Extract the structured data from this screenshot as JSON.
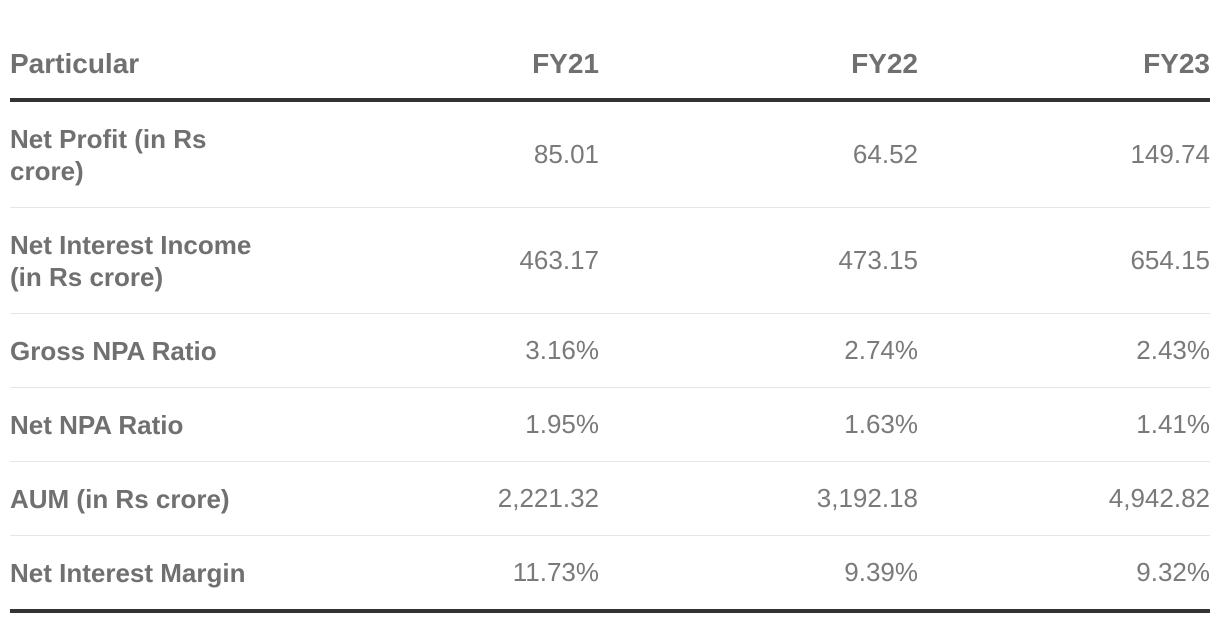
{
  "chart_data": {
    "type": "table",
    "columns": [
      "Particular",
      "FY21",
      "FY22",
      "FY23"
    ],
    "rows": [
      {
        "label": "Net Profit (in Rs crore)",
        "values": [
          "85.01",
          "64.52",
          "149.74"
        ]
      },
      {
        "label": "Net Interest Income (in Rs crore)",
        "values": [
          "463.17",
          "473.15",
          "654.15"
        ]
      },
      {
        "label": "Gross NPA Ratio",
        "values": [
          "3.16%",
          "2.74%",
          "2.43%"
        ]
      },
      {
        "label": "Net NPA Ratio",
        "values": [
          "1.95%",
          "1.63%",
          "1.41%"
        ]
      },
      {
        "label": "AUM (in Rs crore)",
        "values": [
          "2,221.32",
          "3,192.18",
          "4,942.82"
        ]
      },
      {
        "label": "Net Interest Margin",
        "values": [
          "11.73%",
          "9.39%",
          "9.32%"
        ]
      }
    ]
  }
}
